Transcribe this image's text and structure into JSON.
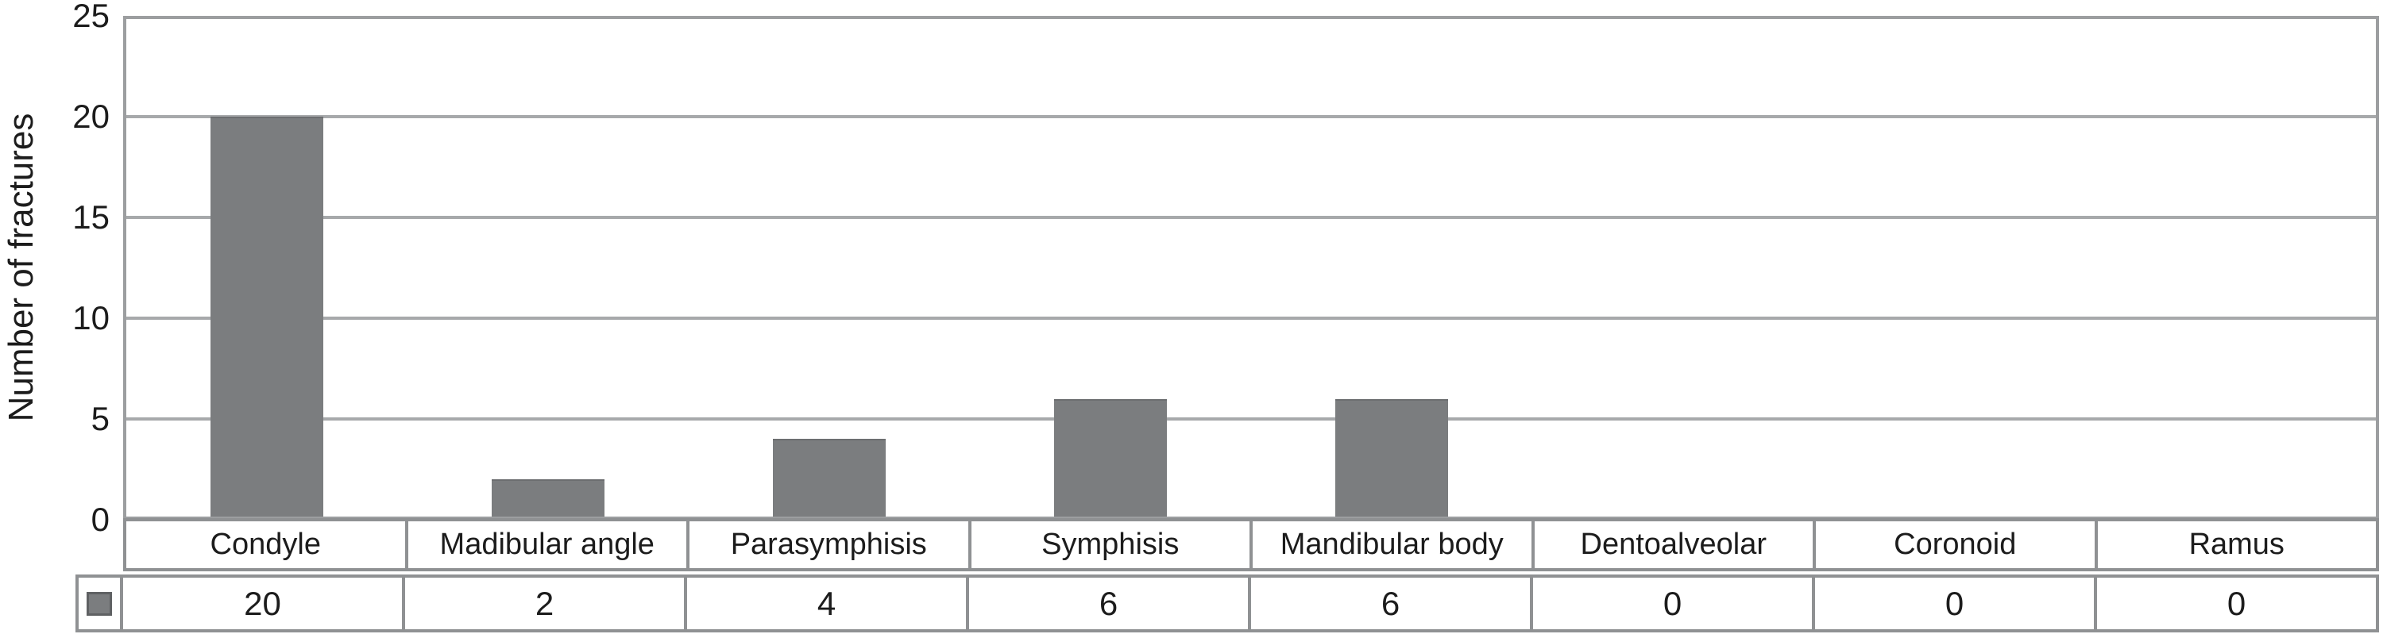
{
  "chart_data": {
    "type": "bar",
    "categories": [
      "Condyle",
      "Madibular angle",
      "Parasymphisis",
      "Symphisis",
      "Mandibular body",
      "Dentoalveolar",
      "Coronoid",
      "Ramus"
    ],
    "values": [
      20,
      2,
      4,
      6,
      6,
      0,
      0,
      0
    ],
    "ylabel": "Number of fractures",
    "ylim": [
      0,
      25
    ],
    "yticks": [
      0,
      5,
      10,
      15,
      20,
      25
    ],
    "grid": "horizontal",
    "legend_position": "swatch cell at left of value row below category axis",
    "value_row": [
      "20",
      "2",
      "4",
      "6",
      "6",
      "0",
      "0",
      "0"
    ],
    "colors": {
      "bar_fill": "#7b7d7f",
      "bar_border": "#6c6e70",
      "swatch_border": "#5f6163",
      "gridline": "#a7a9ab",
      "plot_border": "#9c9ea0",
      "table_border": "#8f9193",
      "text": "#1c1c1c",
      "background": "#ffffff"
    }
  }
}
